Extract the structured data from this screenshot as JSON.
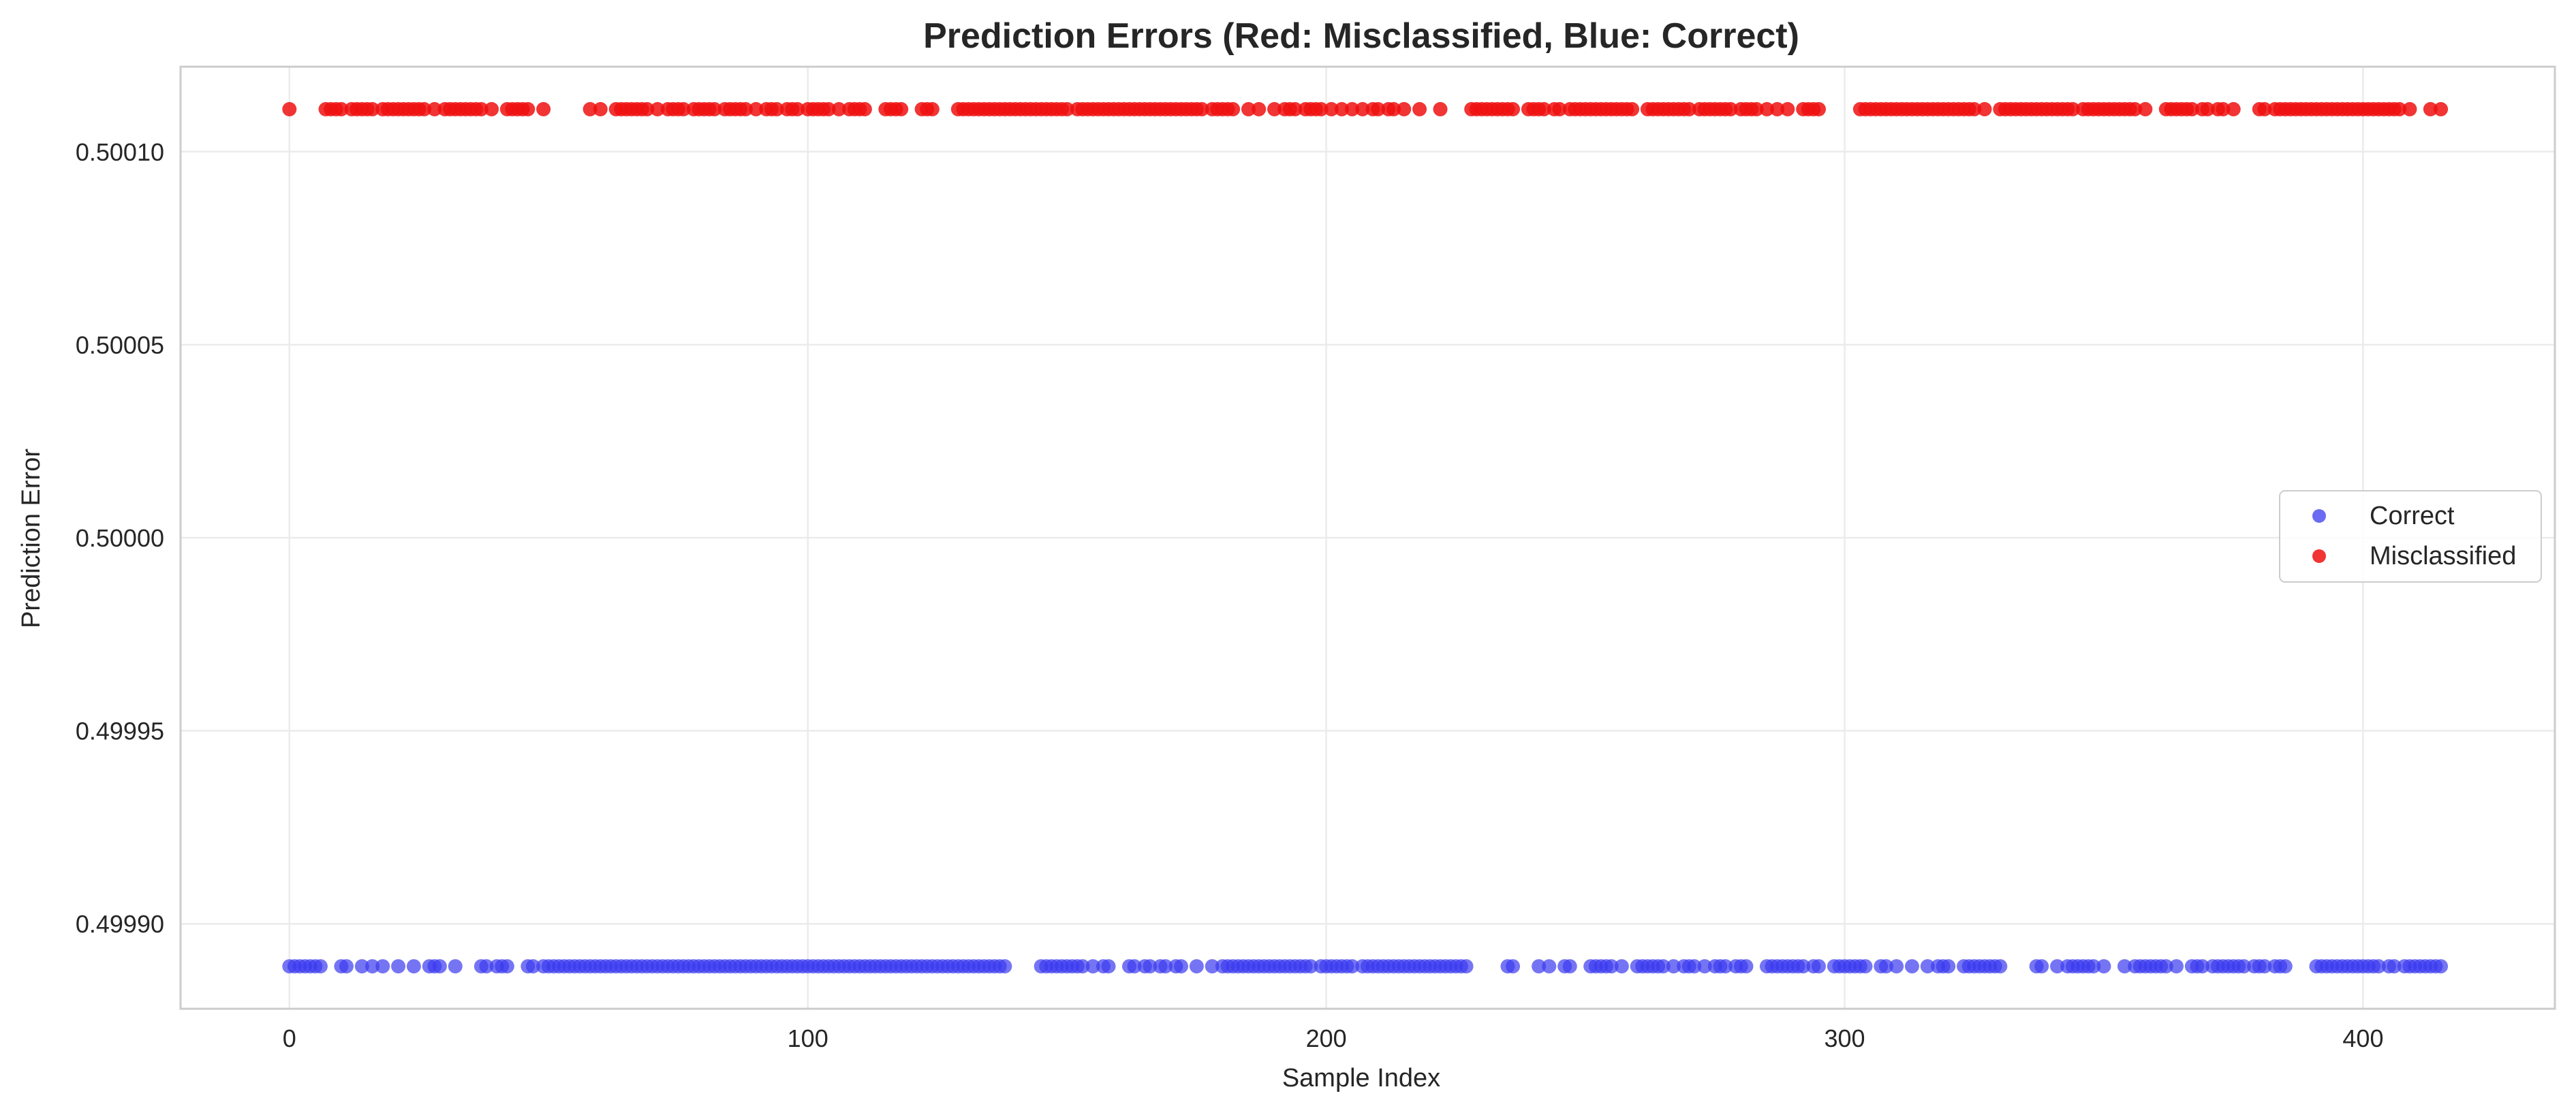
{
  "chart_data": {
    "type": "scatter",
    "title": "Prediction Errors (Red: Misclassified, Blue: Correct)",
    "xlabel": "Sample Index",
    "ylabel": "Prediction Error",
    "xlim": [
      -21,
      437
    ],
    "ylim": [
      0.499878,
      0.500122
    ],
    "xticks": [
      0,
      100,
      200,
      300,
      400
    ],
    "xtick_labels": [
      "0",
      "100",
      "200",
      "300",
      "400"
    ],
    "yticks": [
      0.4999,
      0.49995,
      0.5,
      0.50005,
      0.5001
    ],
    "ytick_labels": [
      "0.49990",
      "0.49995",
      "0.50000",
      "0.50005",
      "0.50010"
    ],
    "grid": true,
    "legend_position": "center-right",
    "series": [
      {
        "name": "Correct",
        "color": "#3a3aef",
        "y": 0.499889,
        "x": [
          0,
          1,
          2,
          3,
          4,
          5,
          6,
          10,
          11,
          14,
          16,
          18,
          21,
          24,
          27,
          28,
          29,
          32,
          37,
          38,
          40,
          41,
          42,
          46,
          47,
          49,
          50,
          51,
          52,
          53,
          54,
          55,
          56,
          57,
          58,
          59,
          60,
          61,
          62,
          63,
          64,
          65,
          66,
          67,
          68,
          69,
          70,
          71,
          72,
          73,
          74,
          75,
          76,
          77,
          78,
          79,
          80,
          81,
          82,
          83,
          84,
          85,
          86,
          87,
          88,
          89,
          90,
          91,
          92,
          93,
          94,
          95,
          96,
          97,
          98,
          99,
          100,
          101,
          102,
          103,
          104,
          105,
          106,
          107,
          108,
          109,
          110,
          111,
          112,
          113,
          114,
          115,
          116,
          117,
          118,
          119,
          120,
          121,
          122,
          123,
          124,
          125,
          126,
          127,
          128,
          129,
          130,
          131,
          132,
          133,
          134,
          135,
          136,
          137,
          138,
          145,
          146,
          147,
          148,
          149,
          150,
          151,
          152,
          153,
          155,
          157,
          158,
          162,
          163,
          165,
          166,
          168,
          169,
          171,
          172,
          175,
          178,
          180,
          181,
          182,
          183,
          184,
          185,
          186,
          187,
          188,
          189,
          190,
          191,
          192,
          193,
          194,
          195,
          196,
          197,
          199,
          200,
          201,
          202,
          203,
          204,
          205,
          207,
          208,
          209,
          210,
          211,
          212,
          213,
          214,
          215,
          216,
          217,
          218,
          219,
          220,
          221,
          222,
          223,
          224,
          225,
          226,
          227,
          235,
          236,
          241,
          243,
          246,
          247,
          251,
          252,
          253,
          254,
          255,
          257,
          260,
          261,
          262,
          263,
          264,
          265,
          267,
          269,
          270,
          271,
          273,
          275,
          276,
          277,
          279,
          280,
          281,
          285,
          286,
          287,
          288,
          289,
          290,
          291,
          292,
          294,
          295,
          298,
          299,
          300,
          301,
          302,
          303,
          304,
          307,
          308,
          310,
          313,
          316,
          318,
          319,
          320,
          323,
          324,
          325,
          326,
          327,
          328,
          329,
          330,
          337,
          338,
          341,
          343,
          344,
          345,
          346,
          347,
          348,
          350,
          354,
          356,
          357,
          358,
          359,
          360,
          361,
          362,
          364,
          367,
          368,
          369,
          371,
          372,
          373,
          374,
          375,
          376,
          377,
          379,
          380,
          381,
          383,
          384,
          385,
          391,
          392,
          393,
          394,
          395,
          396,
          397,
          398,
          399,
          400,
          401,
          402,
          403,
          405,
          406,
          408,
          409,
          410,
          411,
          412,
          413,
          414,
          415
        ]
      },
      {
        "name": "Misclassified",
        "color": "#ef1010",
        "y": 0.500111,
        "x": [
          0,
          7,
          8,
          9,
          10,
          12,
          13,
          14,
          15,
          16,
          18,
          19,
          20,
          21,
          22,
          23,
          24,
          25,
          26,
          28,
          30,
          31,
          32,
          33,
          34,
          35,
          36,
          37,
          39,
          42,
          43,
          44,
          45,
          46,
          49,
          58,
          60,
          63,
          64,
          65,
          66,
          67,
          68,
          69,
          71,
          73,
          74,
          75,
          76,
          78,
          79,
          80,
          81,
          82,
          84,
          85,
          86,
          87,
          88,
          90,
          92,
          93,
          94,
          96,
          97,
          98,
          100,
          101,
          102,
          103,
          104,
          106,
          108,
          109,
          110,
          111,
          115,
          116,
          117,
          118,
          122,
          123,
          124,
          129,
          130,
          131,
          132,
          133,
          134,
          135,
          136,
          137,
          138,
          139,
          140,
          141,
          142,
          143,
          144,
          145,
          146,
          147,
          148,
          149,
          150,
          152,
          153,
          154,
          155,
          156,
          157,
          158,
          159,
          160,
          161,
          162,
          163,
          164,
          165,
          166,
          167,
          168,
          169,
          170,
          171,
          172,
          173,
          174,
          175,
          176,
          178,
          179,
          180,
          181,
          182,
          185,
          187,
          190,
          192,
          193,
          194,
          196,
          197,
          198,
          199,
          201,
          203,
          205,
          207,
          209,
          210,
          212,
          213,
          215,
          218,
          222,
          228,
          229,
          230,
          231,
          232,
          233,
          234,
          235,
          236,
          239,
          240,
          241,
          242,
          244,
          245,
          247,
          248,
          249,
          250,
          251,
          252,
          253,
          254,
          255,
          256,
          257,
          258,
          259,
          262,
          263,
          264,
          265,
          266,
          267,
          268,
          269,
          270,
          272,
          273,
          274,
          275,
          276,
          277,
          278,
          280,
          281,
          282,
          283,
          285,
          287,
          289,
          292,
          293,
          294,
          295,
          303,
          304,
          305,
          306,
          307,
          308,
          309,
          310,
          311,
          312,
          313,
          314,
          315,
          316,
          317,
          318,
          319,
          320,
          321,
          322,
          323,
          324,
          325,
          327,
          330,
          331,
          332,
          333,
          334,
          335,
          336,
          337,
          338,
          339,
          340,
          341,
          342,
          343,
          344,
          346,
          347,
          348,
          349,
          350,
          351,
          352,
          353,
          354,
          355,
          356,
          358,
          362,
          363,
          364,
          365,
          366,
          367,
          369,
          370,
          372,
          373,
          375,
          380,
          381,
          383,
          384,
          385,
          386,
          387,
          388,
          389,
          390,
          391,
          392,
          393,
          394,
          395,
          396,
          397,
          398,
          399,
          400,
          401,
          402,
          403,
          404,
          405,
          406,
          407,
          409,
          413,
          415
        ]
      }
    ]
  }
}
